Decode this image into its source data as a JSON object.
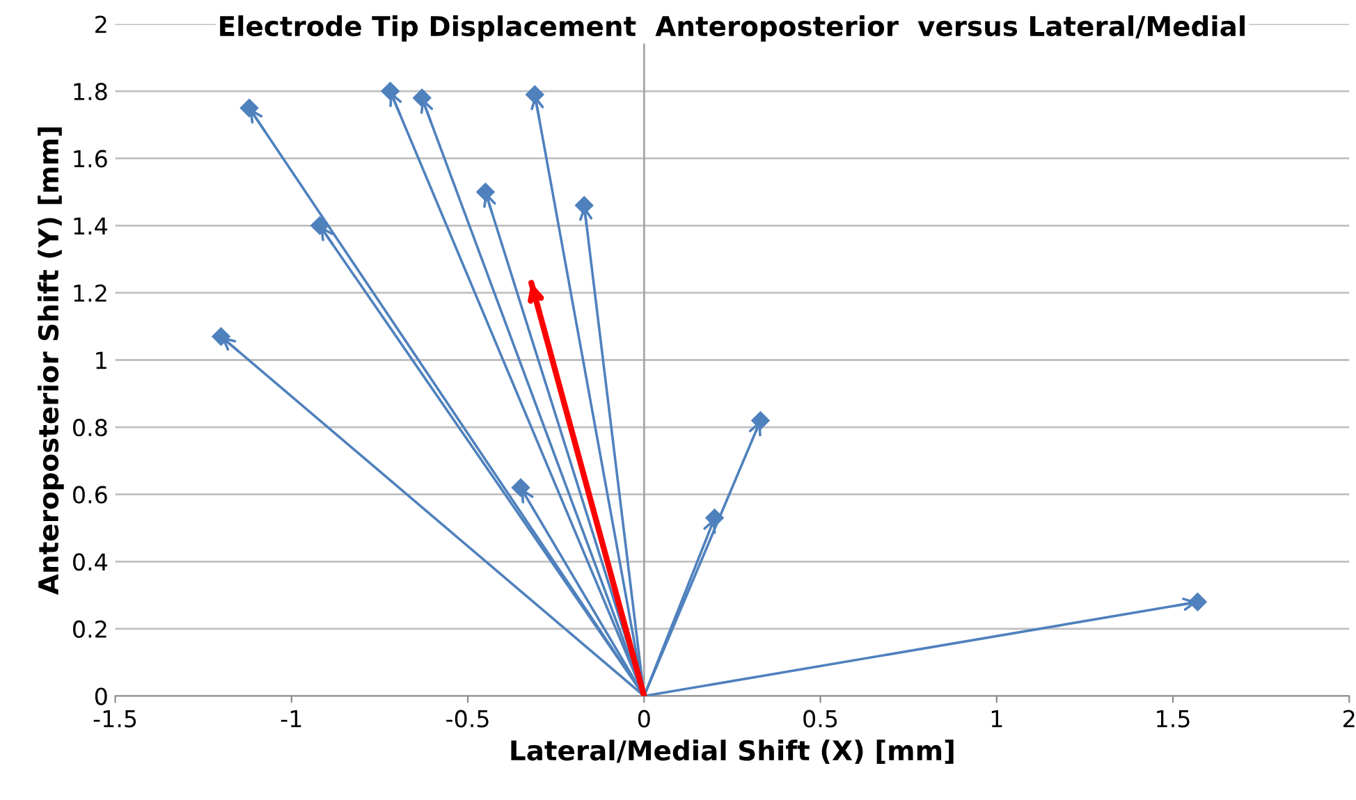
{
  "chart_data": {
    "type": "line",
    "title": "Electrode Tip Displacement  Anteroposterior  versus Lateral/Medial",
    "xlabel": "Lateral/Medial Shift (X) [mm]",
    "ylabel": "Anteroposterior Shift (Y) [mm]",
    "xlim": [
      -1.5,
      2
    ],
    "xticks": [
      -1.5,
      -1,
      -0.5,
      0,
      0.5,
      1,
      1.5,
      2
    ],
    "ylim": [
      0,
      2
    ],
    "yticks": [
      0,
      0.2,
      0.4,
      0.6,
      0.8,
      1,
      1.2,
      1.4,
      1.6,
      1.8,
      2
    ],
    "grid": "y",
    "legend": false,
    "marker": "diamond",
    "ref_lines": [
      {
        "axis": "x",
        "value": 0,
        "color": "#a6a6a6"
      }
    ],
    "series": [
      {
        "color": "#4f81bd",
        "x": [
          0,
          -1.2
        ],
        "values": [
          0,
          1.07
        ]
      },
      {
        "color": "#4f81bd",
        "x": [
          0,
          -1.12
        ],
        "values": [
          0,
          1.75
        ]
      },
      {
        "color": "#4f81bd",
        "x": [
          0,
          -0.92
        ],
        "values": [
          0,
          1.4
        ]
      },
      {
        "color": "#4f81bd",
        "x": [
          0,
          -0.72
        ],
        "values": [
          0,
          1.8
        ]
      },
      {
        "color": "#4f81bd",
        "x": [
          0,
          -0.63
        ],
        "values": [
          0,
          1.78
        ]
      },
      {
        "color": "#4f81bd",
        "x": [
          0,
          -0.45
        ],
        "values": [
          0,
          1.5
        ]
      },
      {
        "color": "#4f81bd",
        "x": [
          0,
          -0.31
        ],
        "values": [
          0,
          1.79
        ]
      },
      {
        "color": "#4f81bd",
        "x": [
          0,
          -0.17
        ],
        "values": [
          0,
          1.46
        ]
      },
      {
        "color": "#4f81bd",
        "x": [
          0,
          -0.35
        ],
        "values": [
          0,
          0.62
        ]
      },
      {
        "color": "#4f81bd",
        "x": [
          0,
          0.2
        ],
        "values": [
          0,
          0.53
        ]
      },
      {
        "color": "#4f81bd",
        "x": [
          0,
          0.33
        ],
        "values": [
          0,
          0.82
        ]
      },
      {
        "color": "#4f81bd",
        "x": [
          0,
          1.57
        ],
        "values": [
          0,
          0.28
        ]
      },
      {
        "color": "#ff0000",
        "x": [
          0,
          -0.32
        ],
        "values": [
          0,
          1.23
        ],
        "marker": "none"
      }
    ]
  }
}
